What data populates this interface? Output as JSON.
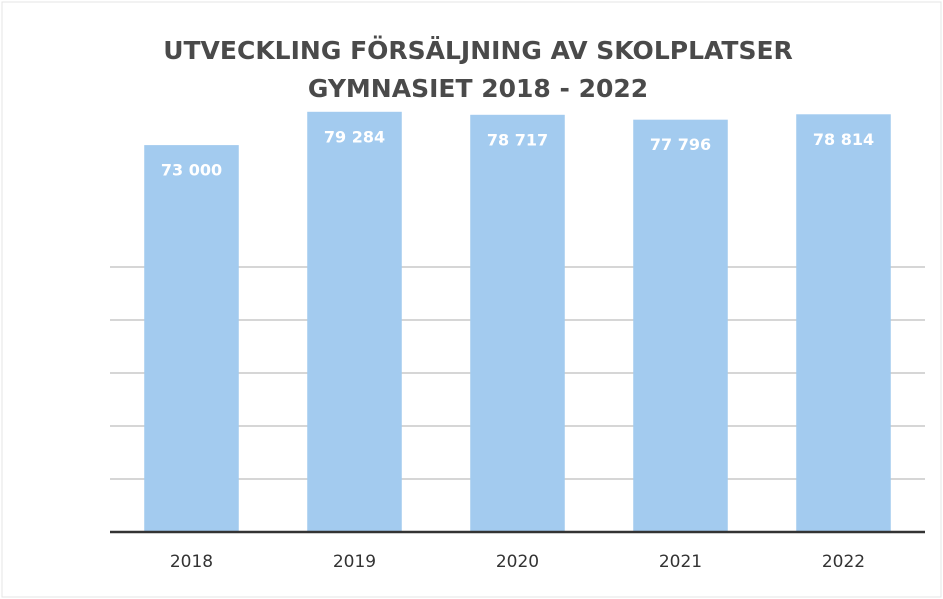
{
  "chart_data": {
    "type": "bar",
    "title": [
      "UTVECKLING FÖRSÄLJNING AV SKOLPLATSER",
      "GYMNASIET 2018 - 2022"
    ],
    "categories": [
      "2018",
      "2019",
      "2020",
      "2021",
      "2022"
    ],
    "values": [
      73000,
      79284,
      78717,
      77796,
      78814
    ],
    "value_labels": [
      "73 000",
      "79 284",
      "78 717",
      "77 796",
      "78 814"
    ],
    "color": "#a3cbef",
    "ylim": [
      0,
      80000
    ],
    "yticks": [
      0,
      10000,
      20000,
      30000,
      40000,
      50000
    ],
    "grid": true
  }
}
